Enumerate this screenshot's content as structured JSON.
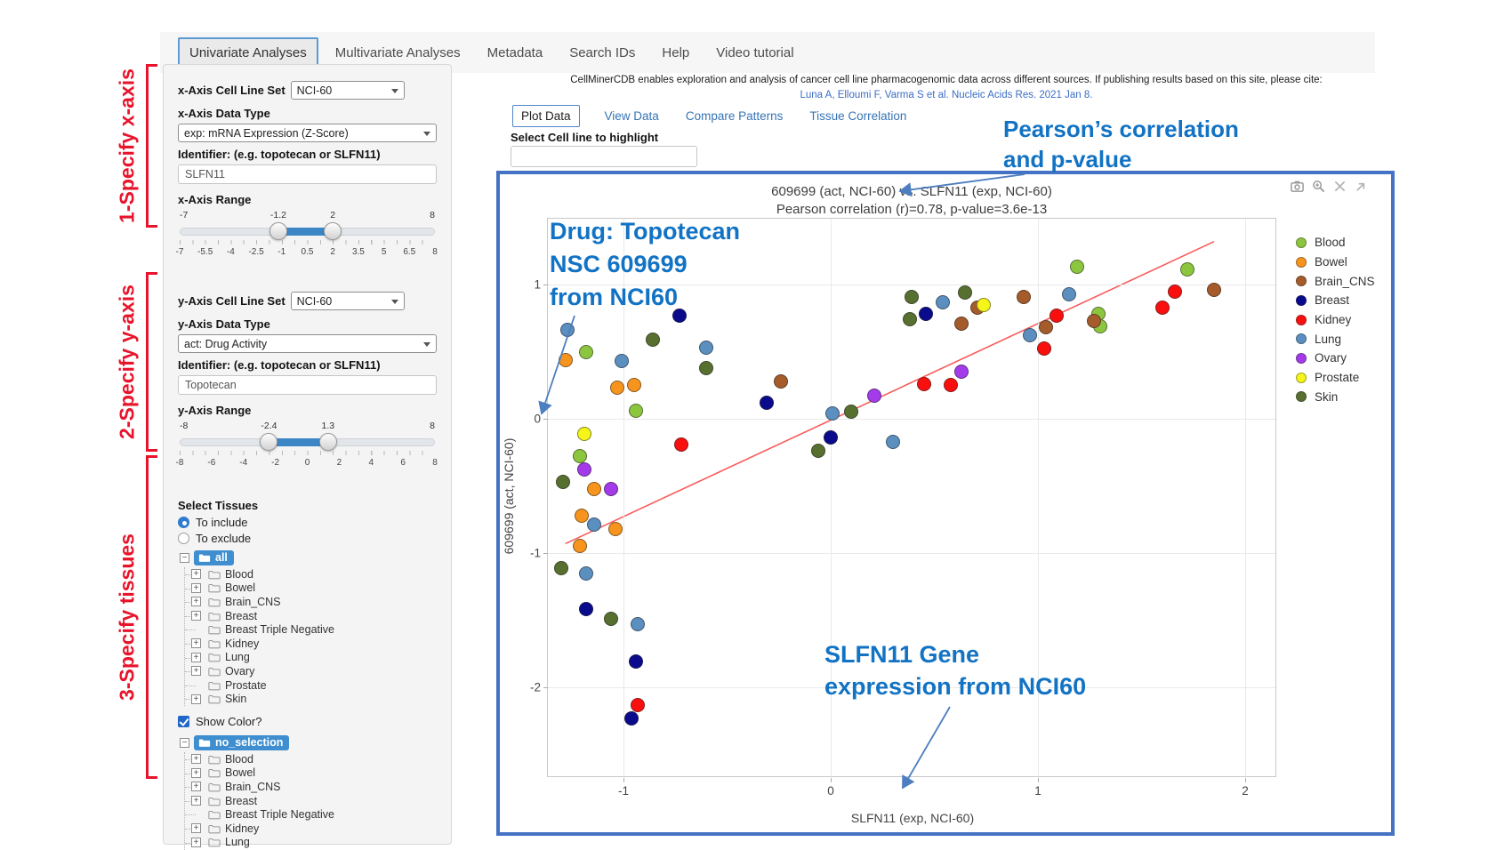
{
  "nav": {
    "items": [
      "Univariate Analyses",
      "Multivariate Analyses",
      "Metadata",
      "Search IDs",
      "Help",
      "Video tutorial"
    ],
    "active_index": 0
  },
  "red_annotations": [
    "1-Specify x-axis",
    "2-Specify y-axis",
    "3-Specify tissues"
  ],
  "sidebar": {
    "x_axis": {
      "cell_line_set_label": "x-Axis Cell Line Set",
      "cell_line_set_value": "NCI-60",
      "data_type_label": "x-Axis Data Type",
      "data_type_value": "exp: mRNA Expression (Z-Score)",
      "identifier_label": "Identifier: (e.g. topotecan or SLFN11)",
      "identifier_value": "SLFN11",
      "range_label": "x-Axis Range",
      "range": {
        "min": -7,
        "max": 8,
        "from": -1.2,
        "to": 2,
        "min_label": "-7",
        "max_label": "8",
        "from_label": "-1.2",
        "to_label": "2",
        "grid": [
          "-7",
          "-5.5",
          "-4",
          "-2.5",
          "-1",
          "0.5",
          "2",
          "3.5",
          "5",
          "6.5",
          "8"
        ]
      }
    },
    "y_axis": {
      "cell_line_set_label": "y-Axis Cell Line Set",
      "cell_line_set_value": "NCI-60",
      "data_type_label": "y-Axis Data Type",
      "data_type_value": "act: Drug Activity",
      "identifier_label": "Identifier: (e.g. topotecan or SLFN11)",
      "identifier_value": "Topotecan",
      "range_label": "y-Axis Range",
      "range": {
        "min": -8,
        "max": 8,
        "from": -2.4,
        "to": 1.3,
        "min_label": "-8",
        "max_label": "8",
        "from_label": "-2.4",
        "to_label": "1.3",
        "grid": [
          "-8",
          "-6",
          "-4",
          "-2",
          "0",
          "2",
          "4",
          "6",
          "8"
        ]
      }
    },
    "select_tissues_label": "Select Tissues",
    "radios": [
      {
        "label": "To include",
        "selected": true
      },
      {
        "label": "To exclude",
        "selected": false
      }
    ],
    "tree1_root": "all",
    "tree2_root": "no_selection",
    "tree_children": [
      {
        "label": "Blood",
        "expandable": true
      },
      {
        "label": "Bowel",
        "expandable": true
      },
      {
        "label": "Brain_CNS",
        "expandable": true
      },
      {
        "label": "Breast",
        "expandable": true
      },
      {
        "label": "Breast Triple Negative",
        "expandable": false
      },
      {
        "label": "Kidney",
        "expandable": true
      },
      {
        "label": "Lung",
        "expandable": true
      },
      {
        "label": "Ovary",
        "expandable": true
      },
      {
        "label": "Prostate",
        "expandable": false
      },
      {
        "label": "Skin",
        "expandable": true
      }
    ],
    "show_color_label": "Show Color?"
  },
  "main": {
    "citation_line1": "CellMinerCDB enables exploration and analysis of cancer cell line pharmacogenomic data across different sources. If publishing results based on this site, please cite:",
    "citation_line2": "Luna A, Elloumi F, Varma S et al. Nucleic Acids Res. 2021 Jan 8.",
    "tabs": [
      {
        "label": "Plot Data",
        "active": true
      },
      {
        "label": "View Data",
        "active": false
      },
      {
        "label": "Compare Patterns",
        "active": false
      },
      {
        "label": "Tissue Correlation",
        "active": false
      }
    ],
    "highlight_label": "Select Cell line to highlight",
    "highlight_value": ""
  },
  "blue_annotations": [
    {
      "lines": [
        "Pearson’s correlation",
        "and p-value"
      ]
    },
    {
      "lines": [
        "Drug: Topotecan",
        "NSC 609699",
        "from NCI60"
      ]
    },
    {
      "lines": [
        "SLFN11 Gene",
        "expression from NCI60"
      ]
    }
  ],
  "modebar_icons": [
    "camera-icon",
    "zoom-in-icon",
    "pan-cross-icon",
    "reset-axes-icon"
  ],
  "chart_data": {
    "type": "scatter",
    "title": "609699 (act, NCI-60) vs. SLFN11 (exp, NCI-60)",
    "subtitle": "Pearson correlation (r)=0.78, p-value=3.6e-13",
    "pearson_r": 0.78,
    "p_value": "3.6e-13",
    "xlabel": "SLFN11 (exp, NCI-60)",
    "ylabel": "609699 (act, NCI-60)",
    "x_ticks": [
      -1,
      0,
      1,
      2
    ],
    "y_ticks": [
      1,
      0,
      -1,
      -2
    ],
    "xlim": [
      -1.36,
      2.16
    ],
    "ylim": [
      -2.67,
      1.49
    ],
    "grid": true,
    "legend_position": "right",
    "trend_line": {
      "x1": -1.28,
      "y1": -0.93,
      "x2": 1.85,
      "y2": 1.32,
      "color": "#fa5a5a"
    },
    "series": [
      {
        "name": "Blood",
        "color": "#8cc63e",
        "points": [
          [
            1.19,
            1.13
          ],
          [
            1.72,
            1.11
          ],
          [
            1.29,
            0.78
          ],
          [
            1.3,
            0.69
          ],
          [
            -0.94,
            0.06
          ],
          [
            -1.18,
            0.5
          ],
          [
            -1.21,
            -0.28
          ]
        ]
      },
      {
        "name": "Bowel",
        "color": "#f7941d",
        "points": [
          [
            -1.03,
            0.23
          ],
          [
            -0.95,
            0.25
          ],
          [
            -1.28,
            0.44
          ],
          [
            -1.14,
            -0.52
          ],
          [
            -1.2,
            -0.72
          ],
          [
            -1.04,
            -0.82
          ],
          [
            -1.21,
            -0.95
          ]
        ]
      },
      {
        "name": "Brain_CNS",
        "color": "#a55b2a",
        "points": [
          [
            1.85,
            0.96
          ],
          [
            1.27,
            0.73
          ],
          [
            1.04,
            0.68
          ],
          [
            0.71,
            0.83
          ],
          [
            0.63,
            0.71
          ],
          [
            0.93,
            0.91
          ],
          [
            -0.24,
            0.28
          ]
        ]
      },
      {
        "name": "Breast",
        "color": "#0a0a8c",
        "points": [
          [
            0.46,
            0.78
          ],
          [
            0.0,
            -0.14
          ],
          [
            -0.73,
            0.77
          ],
          [
            -0.31,
            0.12
          ],
          [
            -1.18,
            -1.42
          ],
          [
            -0.94,
            -1.81
          ],
          [
            -0.96,
            -2.23
          ]
        ]
      },
      {
        "name": "Kidney",
        "color": "#fa0f0f",
        "points": [
          [
            1.66,
            0.95
          ],
          [
            1.6,
            0.83
          ],
          [
            1.09,
            0.77
          ],
          [
            1.03,
            0.52
          ],
          [
            0.45,
            0.26
          ],
          [
            0.58,
            0.25
          ],
          [
            -0.72,
            -0.19
          ],
          [
            -0.93,
            -2.13
          ]
        ]
      },
      {
        "name": "Lung",
        "color": "#5b8fc0",
        "points": [
          [
            1.15,
            0.93
          ],
          [
            0.96,
            0.62
          ],
          [
            0.54,
            0.87
          ],
          [
            0.01,
            0.04
          ],
          [
            0.3,
            -0.17
          ],
          [
            -1.01,
            0.43
          ],
          [
            -1.27,
            0.66
          ],
          [
            -0.6,
            0.53
          ],
          [
            -1.14,
            -0.79
          ],
          [
            -1.18,
            -1.15
          ],
          [
            -0.93,
            -1.53
          ]
        ]
      },
      {
        "name": "Ovary",
        "color": "#a43bea",
        "points": [
          [
            0.63,
            0.35
          ],
          [
            0.21,
            0.17
          ],
          [
            -1.19,
            -0.38
          ],
          [
            -1.06,
            -0.52
          ]
        ]
      },
      {
        "name": "Prostate",
        "color": "#f5f51a",
        "points": [
          [
            0.74,
            0.85
          ],
          [
            -1.19,
            -0.11
          ]
        ]
      },
      {
        "name": "Skin",
        "color": "#57702f",
        "points": [
          [
            0.39,
            0.91
          ],
          [
            0.65,
            0.94
          ],
          [
            0.38,
            0.74
          ],
          [
            0.1,
            0.05
          ],
          [
            -0.06,
            -0.24
          ],
          [
            -0.86,
            0.59
          ],
          [
            -0.6,
            0.38
          ],
          [
            -1.29,
            -0.47
          ],
          [
            -1.3,
            -1.11
          ],
          [
            -1.06,
            -1.49
          ]
        ]
      }
    ]
  }
}
